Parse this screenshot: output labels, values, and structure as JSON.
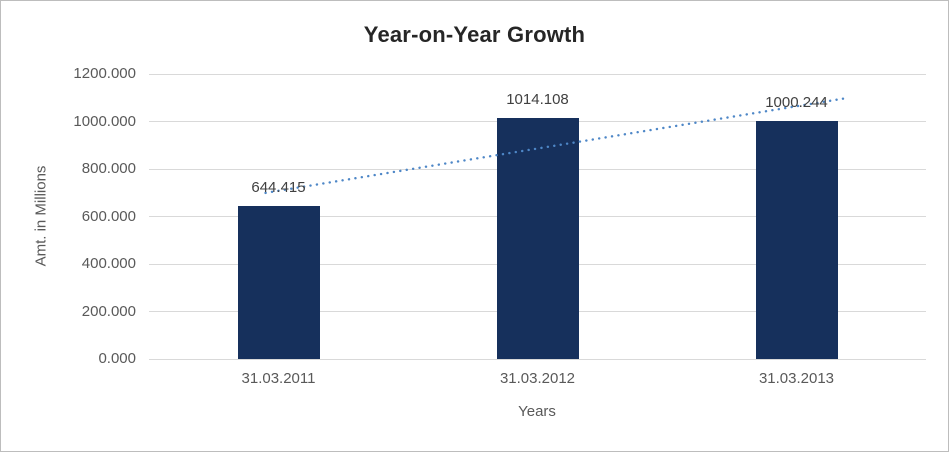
{
  "window": {
    "background": "#ffffff",
    "border_color": "#bdbdbd"
  },
  "chart_data": {
    "type": "bar",
    "title": "Year-on-Year Growth",
    "categories": [
      "31.03.2011",
      "31.03.2012",
      "31.03.2013"
    ],
    "values": [
      644.415,
      1014.108,
      1000.244
    ],
    "data_labels": [
      "644.415",
      "1014.108",
      "1000.244"
    ],
    "xlabel": "Years",
    "ylabel": "Amt. in Millions",
    "ylim": [
      0,
      1200
    ],
    "ytick_step": 200,
    "ytick_labels": [
      "0.000",
      "200.000",
      "400.000",
      "600.000",
      "800.000",
      "1000.000",
      "1200.000"
    ],
    "grid": true,
    "legend": "none",
    "colors": {
      "bar": "#16305c",
      "gridline": "#d9d9d9",
      "trendline": "#4e87c7",
      "title_text": "#262626",
      "axis_text": "#595959",
      "data_label_text": "#404040"
    },
    "trendline": {
      "type": "linear",
      "style": "dotted",
      "t_start": -0.05,
      "t_end": 2.2,
      "value_start": 699.44,
      "value_end": 1099.75
    }
  }
}
